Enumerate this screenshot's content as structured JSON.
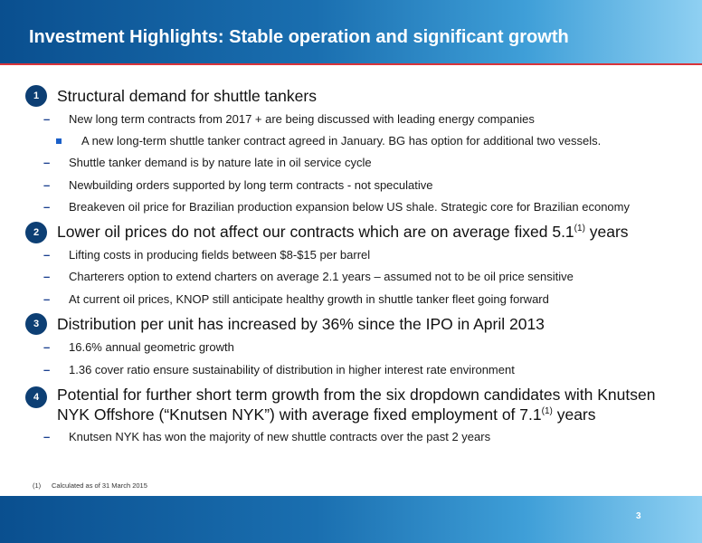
{
  "header": {
    "title": "Investment Highlights: Stable operation and significant growth"
  },
  "sections": [
    {
      "number": "1",
      "heading": "Structural demand for shuttle tankers",
      "bullets": [
        "New long term contracts from 2017 + are being discussed with leading energy companies",
        "A new long-term shuttle tanker contract agreed in January.  BG has option for additional two vessels.",
        "Shuttle tanker demand is by nature late in oil service cycle",
        "Newbuilding orders supported by long term contracts - not speculative",
        "Breakeven oil price for Brazilian production expansion below US shale. Strategic core for Brazilian economy"
      ]
    },
    {
      "number": "2",
      "heading_pre": "Lower oil prices do not affect our contracts which are on average fixed 5.1",
      "heading_sup": "(1)",
      "heading_post": " years",
      "bullets": [
        "Lifting costs in producing fields between $8-$15 per barrel",
        "Charterers option to extend charters on average 2.1 years – assumed not to be oil price sensitive",
        "At current oil prices, KNOP still anticipate healthy growth in shuttle tanker fleet going forward"
      ]
    },
    {
      "number": "3",
      "heading": "Distribution per unit has increased by 36% since the IPO in April 2013",
      "bullets": [
        "16.6% annual geometric growth",
        "1.36 cover ratio ensure sustainability of distribution in higher interest rate environment"
      ]
    },
    {
      "number": "4",
      "heading_line1": "Potential for further short term growth from the six dropdown candidates with Knutsen",
      "heading_line2_pre": "NYK Offshore (“Knutsen NYK”) with average fixed employment of 7.1",
      "heading_line2_sup": "(1)",
      "heading_line2_post": " years",
      "bullets": [
        "Knutsen NYK has won the majority of new shuttle contracts over the past 2 years"
      ]
    }
  ],
  "dash_glyph": "–",
  "footnote": {
    "mark": "(1)",
    "text": "Calculated as of 31 March 2015"
  },
  "page_number": "3"
}
